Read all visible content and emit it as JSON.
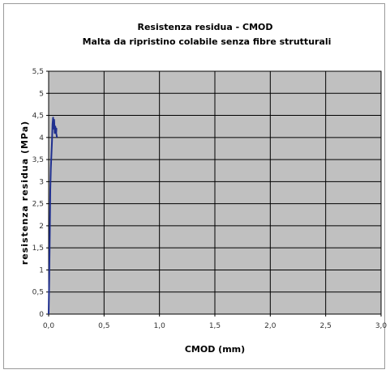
{
  "chart_data": {
    "type": "line",
    "title": "Resistenza residua - CMOD",
    "subtitle": "Malta da ripristino colabile senza fibre strutturali",
    "xlabel": "CMOD (mm)",
    "ylabel": "resistenza residua (MPa)",
    "xlim": [
      0,
      3.0
    ],
    "ylim": [
      0,
      5.5
    ],
    "x_ticks": [
      "0,0",
      "0,5",
      "1,0",
      "1,5",
      "2,0",
      "2,5",
      "3,0"
    ],
    "y_ticks": [
      "0",
      "0,5",
      "1",
      "1,5",
      "2",
      "2,5",
      "3",
      "3,5",
      "4",
      "4,5",
      "5",
      "5,5"
    ],
    "grid": true,
    "plot_background": "#c0c0c0",
    "series": [
      {
        "color": "#1f2f8f",
        "x": [
          0.0,
          0.005,
          0.01,
          0.015,
          0.02,
          0.025,
          0.03,
          0.035,
          0.04,
          0.045,
          0.05,
          0.055,
          0.06,
          0.065,
          0.07,
          0.068,
          0.072,
          0.075
        ],
        "y": [
          0.0,
          0.8,
          1.8,
          2.8,
          3.3,
          3.6,
          3.9,
          4.3,
          4.45,
          4.2,
          4.4,
          4.1,
          4.25,
          4.15,
          4.2,
          4.1,
          4.05,
          4.0
        ]
      }
    ]
  }
}
